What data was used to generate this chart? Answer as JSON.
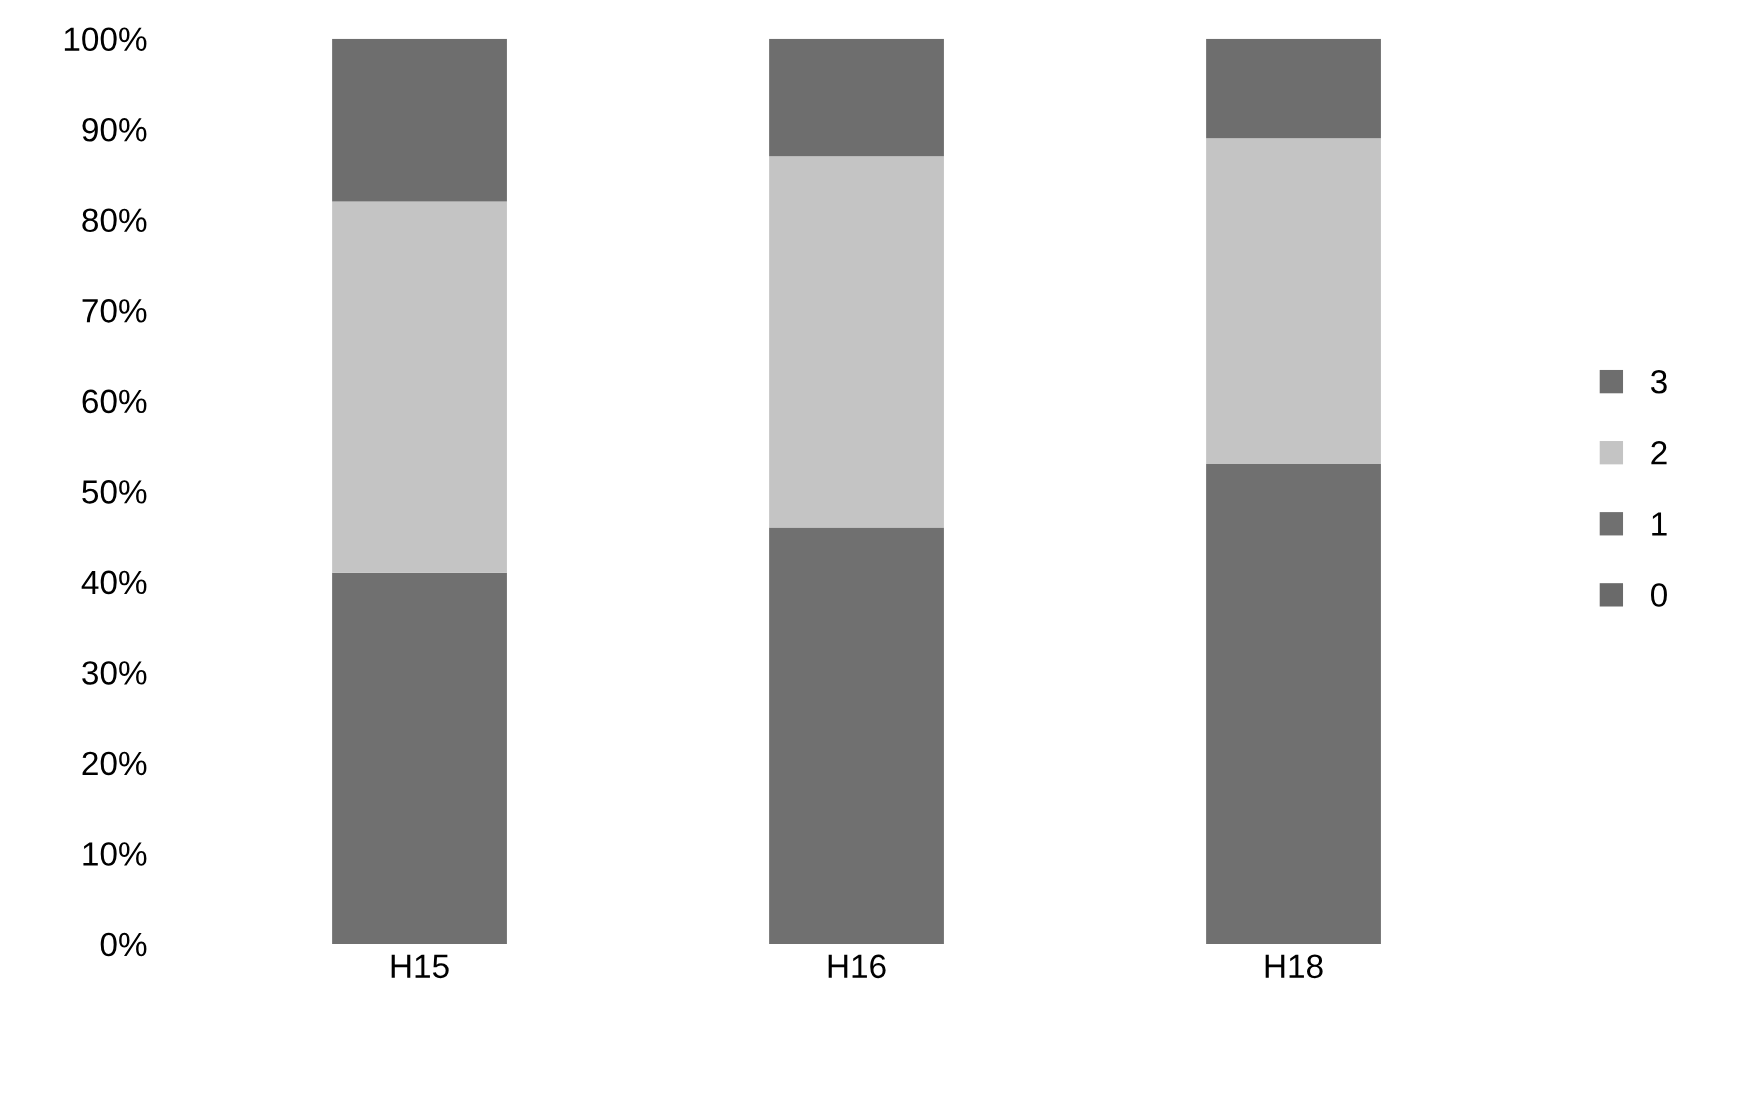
{
  "chart_data": {
    "type": "bar",
    "stacked": true,
    "categories": [
      "H15",
      "H16",
      "H18"
    ],
    "series": [
      {
        "name": "0",
        "color": "#6a6a6a",
        "values": [
          0,
          0,
          0
        ]
      },
      {
        "name": "1",
        "color": "#707070",
        "values": [
          41,
          46,
          53
        ]
      },
      {
        "name": "2",
        "color": "#c4c4c4",
        "values": [
          41,
          41,
          36
        ]
      },
      {
        "name": "3",
        "color": "#6e6e6e",
        "values": [
          18,
          13,
          11
        ]
      }
    ],
    "ylim": [
      0,
      100
    ],
    "yticks": [
      {
        "value": 0,
        "label": "0%"
      },
      {
        "value": 10,
        "label": "10%"
      },
      {
        "value": 20,
        "label": "20%"
      },
      {
        "value": 30,
        "label": "30%"
      },
      {
        "value": 40,
        "label": "40%"
      },
      {
        "value": 50,
        "label": "50%"
      },
      {
        "value": 60,
        "label": "60%"
      },
      {
        "value": 70,
        "label": "70%"
      },
      {
        "value": 80,
        "label": "80%"
      },
      {
        "value": 90,
        "label": "90%"
      },
      {
        "value": 100,
        "label": "100%"
      }
    ],
    "grid": false,
    "legend": "right"
  }
}
